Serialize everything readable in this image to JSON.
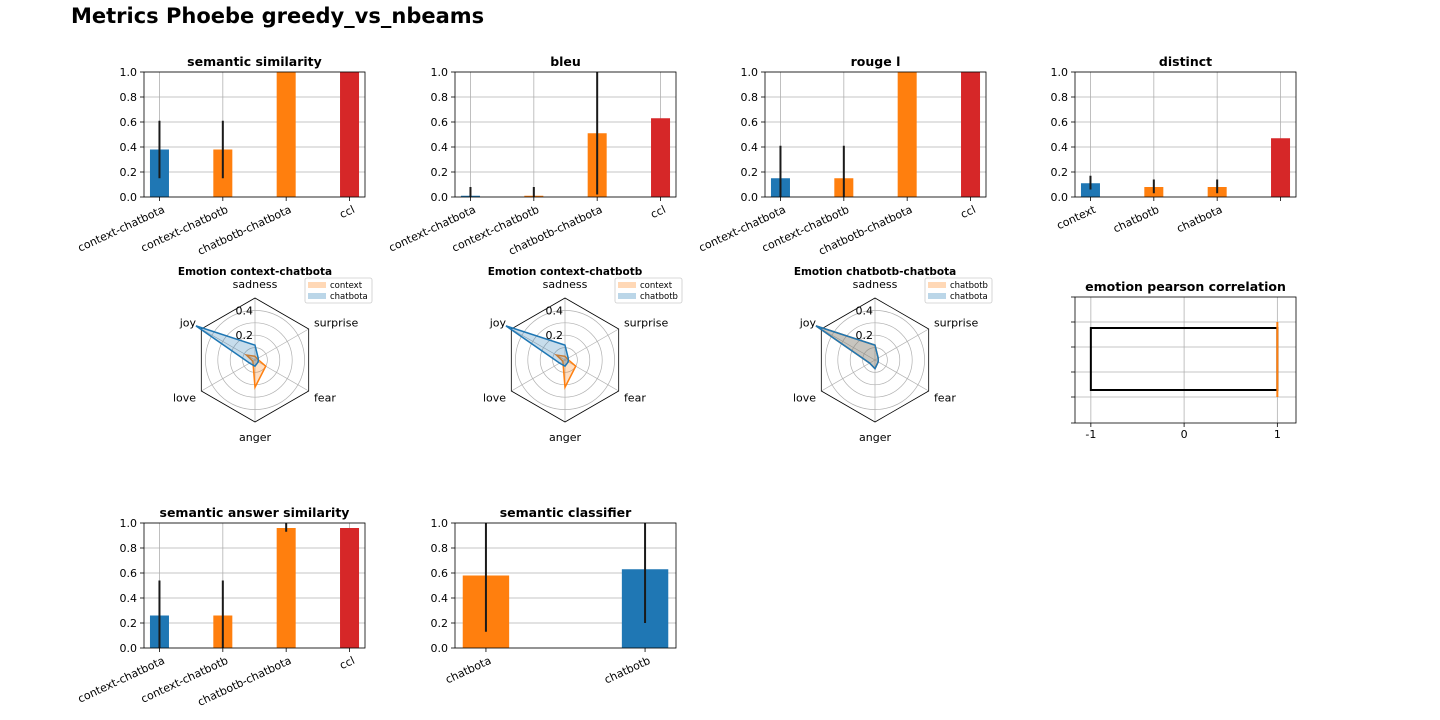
{
  "page": {
    "title": "Metrics Phoebe greedy_vs_nbeams"
  },
  "colors": {
    "blue": "#1f77b4",
    "orange": "#ff7f0e",
    "red": "#d62728",
    "grid": "#b0b0b0"
  },
  "chart_data": [
    {
      "id": "semantic_similarity",
      "type": "bar",
      "title": "semantic similarity",
      "categories": [
        "context-chatbota",
        "context-chatbotb",
        "chatbotb-chatbota",
        "ccl"
      ],
      "values": [
        0.38,
        0.38,
        1.0,
        1.0
      ],
      "errors": [
        [
          0.15,
          0.61
        ],
        [
          0.15,
          0.61
        ],
        null,
        null
      ],
      "colors": [
        "blue",
        "orange",
        "orange",
        "red"
      ],
      "ylim": [
        0,
        1
      ],
      "yticks": [
        "0.0",
        "0.2",
        "0.4",
        "0.6",
        "0.8",
        "1.0"
      ],
      "grid": true
    },
    {
      "id": "bleu",
      "type": "bar",
      "title": "bleu",
      "categories": [
        "context-chatbota",
        "context-chatbotb",
        "chatbotb-chatbota",
        "ccl"
      ],
      "values": [
        0.01,
        0.01,
        0.51,
        0.63
      ],
      "errors": [
        [
          0.0,
          0.08
        ],
        [
          0.0,
          0.08
        ],
        [
          0.02,
          1.0
        ],
        null
      ],
      "colors": [
        "blue",
        "orange",
        "orange",
        "red"
      ],
      "ylim": [
        0,
        1
      ],
      "yticks": [
        "0.0",
        "0.2",
        "0.4",
        "0.6",
        "0.8",
        "1.0"
      ],
      "grid": true
    },
    {
      "id": "rouge_l",
      "type": "bar",
      "title": "rouge l",
      "categories": [
        "context-chatbota",
        "context-chatbotb",
        "chatbotb-chatbota",
        "ccl"
      ],
      "values": [
        0.15,
        0.15,
        1.0,
        1.0
      ],
      "errors": [
        [
          0.0,
          0.41
        ],
        [
          0.0,
          0.41
        ],
        null,
        null
      ],
      "colors": [
        "blue",
        "orange",
        "orange",
        "red"
      ],
      "ylim": [
        0,
        1
      ],
      "yticks": [
        "0.0",
        "0.2",
        "0.4",
        "0.6",
        "0.8",
        "1.0"
      ],
      "grid": true
    },
    {
      "id": "distinct",
      "type": "bar",
      "title": "distinct",
      "categories": [
        "context",
        "chatbotb",
        "chatbota",
        ""
      ],
      "values": [
        0.11,
        0.08,
        0.08,
        0.47
      ],
      "errors": [
        [
          0.06,
          0.17
        ],
        [
          0.03,
          0.14
        ],
        [
          0.03,
          0.14
        ],
        null
      ],
      "colors": [
        "blue",
        "orange",
        "orange",
        "red"
      ],
      "ylim": [
        0,
        1
      ],
      "yticks": [
        "0.0",
        "0.2",
        "0.4",
        "0.6",
        "0.8",
        "1.0"
      ],
      "grid": true
    },
    {
      "id": "emotion_context_chatbota",
      "type": "radar",
      "title": "Emotion context-chatbota",
      "axes": [
        "sadness",
        "surprise",
        "fear",
        "anger",
        "love",
        "joy"
      ],
      "rticks": [
        "0.2",
        "0.4"
      ],
      "rmax": 0.5,
      "series": [
        {
          "name": "context",
          "color": "orange",
          "values": [
            0.03,
            0.02,
            0.1,
            0.22,
            0.02,
            0.08
          ]
        },
        {
          "name": "chatbota",
          "color": "blue",
          "values": [
            0.12,
            0.03,
            0.03,
            0.05,
            0.05,
            0.55
          ]
        }
      ]
    },
    {
      "id": "emotion_context_chatbotb",
      "type": "radar",
      "title": "Emotion context-chatbotb",
      "axes": [
        "sadness",
        "surprise",
        "fear",
        "anger",
        "love",
        "joy"
      ],
      "rticks": [
        "0.2",
        "0.4"
      ],
      "rmax": 0.5,
      "series": [
        {
          "name": "context",
          "color": "orange",
          "values": [
            0.03,
            0.02,
            0.1,
            0.22,
            0.02,
            0.08
          ]
        },
        {
          "name": "chatbotb",
          "color": "blue",
          "values": [
            0.12,
            0.03,
            0.03,
            0.05,
            0.05,
            0.55
          ]
        }
      ]
    },
    {
      "id": "emotion_chatbotb_chatbota",
      "type": "radar",
      "title": "Emotion chatbotb-chatbota",
      "axes": [
        "sadness",
        "surprise",
        "fear",
        "anger",
        "love",
        "joy"
      ],
      "rticks": [
        "0.2",
        "0.4"
      ],
      "rmax": 0.5,
      "series": [
        {
          "name": "chatbotb",
          "color": "orange",
          "values": [
            0.12,
            0.03,
            0.03,
            0.07,
            0.05,
            0.55
          ]
        },
        {
          "name": "chatbota",
          "color": "blue",
          "values": [
            0.12,
            0.03,
            0.03,
            0.07,
            0.05,
            0.55
          ]
        }
      ]
    },
    {
      "id": "emotion_pearson_correlation",
      "type": "bar-horizontal",
      "title": "emotion pearson correlation",
      "xlim": [
        -1.17,
        1.2
      ],
      "xticks": [
        "-1",
        "0",
        "1"
      ],
      "grid": true,
      "boxes": [
        {
          "color": "#000000",
          "x0": -1.0,
          "x1": 1.0
        },
        {
          "color": "orange",
          "x0": 1.0,
          "x1": 1.0
        }
      ]
    },
    {
      "id": "semantic_answer_similarity",
      "type": "bar",
      "title": "semantic answer similarity",
      "categories": [
        "context-chatbota",
        "context-chatbotb",
        "chatbotb-chatbota",
        "ccl"
      ],
      "values": [
        0.26,
        0.26,
        0.96,
        0.96
      ],
      "errors": [
        [
          0.0,
          0.54
        ],
        [
          0.0,
          0.54
        ],
        [
          0.93,
          1.0
        ],
        null
      ],
      "colors": [
        "blue",
        "orange",
        "orange",
        "red"
      ],
      "ylim": [
        0,
        1
      ],
      "yticks": [
        "0.0",
        "0.2",
        "0.4",
        "0.6",
        "0.8",
        "1.0"
      ],
      "grid": true
    },
    {
      "id": "semantic_classifier",
      "type": "bar",
      "title": "semantic classifier",
      "categories": [
        "chatbota",
        "chatbotb"
      ],
      "values": [
        0.58,
        0.63
      ],
      "errors": [
        [
          0.13,
          1.0
        ],
        [
          0.2,
          1.0
        ]
      ],
      "colors": [
        "orange",
        "blue"
      ],
      "ylim": [
        0,
        1
      ],
      "yticks": [
        "0.0",
        "0.2",
        "0.4",
        "0.6",
        "0.8",
        "1.0"
      ],
      "grid": true
    }
  ]
}
